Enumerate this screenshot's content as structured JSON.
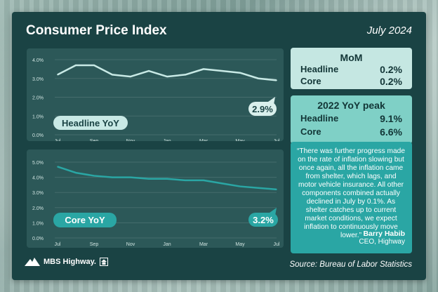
{
  "title": "Consumer Price Index",
  "date": "July 2024",
  "colors": {
    "headline_line": "#c8e9e5",
    "core_line": "#2aa6a4",
    "card_bg": "#1a4344"
  },
  "chart_data": [
    {
      "type": "line",
      "label": "Headline YoY",
      "categories": [
        "Jul",
        "Aug",
        "Sep",
        "Oct",
        "Nov",
        "Dec",
        "Jan",
        "Feb",
        "Mar",
        "Apr",
        "May",
        "Jun",
        "Jul"
      ],
      "tick_labels": [
        "Jul",
        "Sep",
        "Nov",
        "Jan",
        "Mar",
        "May",
        "Jul"
      ],
      "y_ticks": [
        "4.0%",
        "3.0%",
        "2.0%",
        "1.0%",
        "0.0%"
      ],
      "series": [
        {
          "values": [
            3.2,
            3.7,
            3.7,
            3.2,
            3.1,
            3.4,
            3.1,
            3.2,
            3.5,
            3.4,
            3.3,
            3.0,
            2.9
          ]
        }
      ],
      "ylim": [
        0,
        4
      ],
      "callout": "2.9%",
      "grid": true
    },
    {
      "type": "line",
      "label": "Core YoY",
      "categories": [
        "Jul",
        "Aug",
        "Sep",
        "Oct",
        "Nov",
        "Dec",
        "Jan",
        "Feb",
        "Mar",
        "Apr",
        "May",
        "Jun",
        "Jul"
      ],
      "tick_labels": [
        "Jul",
        "Sep",
        "Nov",
        "Jan",
        "Mar",
        "May",
        "Jul"
      ],
      "y_ticks": [
        "5.0%",
        "4.0%",
        "3.0%",
        "2.0%",
        "1.0%",
        "0.0%"
      ],
      "series": [
        {
          "values": [
            4.7,
            4.3,
            4.1,
            4.0,
            4.0,
            3.9,
            3.9,
            3.8,
            3.8,
            3.6,
            3.4,
            3.3,
            3.2
          ]
        }
      ],
      "ylim": [
        0,
        5
      ],
      "callout": "3.2%",
      "grid": true
    }
  ],
  "mom": {
    "title": "MoM",
    "headline_label": "Headline",
    "headline_value": "0.2%",
    "core_label": "Core",
    "core_value": "0.2%"
  },
  "peak": {
    "title": "2022 YoY peak",
    "headline_label": "Headline",
    "headline_value": "9.1%",
    "core_label": "Core",
    "core_value": "6.6%"
  },
  "quote": {
    "text": "“There was further progress made on the rate of inflation slowing but once again, all the inflation came from shelter, which lags, and motor vehicle insurance. All other components combined actually declined in July by 0.1%. As shelter catches up to current market conditions, we expect inflation to continuously move lower.”",
    "name": "Barry Habib",
    "role": "CEO, Highway"
  },
  "logo_text": "MBS Highway.",
  "source": "Source: Bureau of Labor Statistics"
}
